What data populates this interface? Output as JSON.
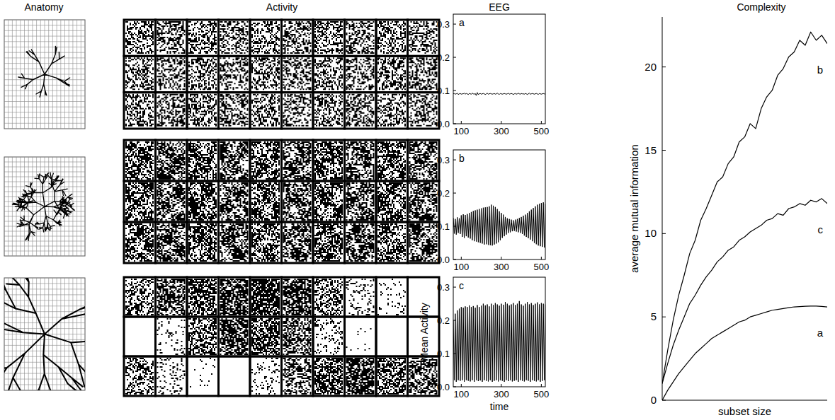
{
  "column_headers": [
    "Anatomy",
    "Activity",
    "EEG",
    "Complexity"
  ],
  "chart_data": [
    {
      "type": "line",
      "x": [
        60,
        65,
        70,
        75,
        80,
        85,
        90,
        95,
        100,
        105,
        110,
        115,
        120,
        125,
        130,
        135,
        140,
        145,
        150,
        155,
        160,
        165,
        170,
        175,
        180,
        185,
        190,
        195,
        200,
        205,
        210,
        215,
        220,
        225,
        230,
        235,
        240,
        245,
        250,
        255,
        260,
        265,
        270,
        275,
        280,
        285,
        290,
        295,
        300,
        305,
        310,
        315,
        320,
        325,
        330,
        335,
        340,
        345,
        350,
        355,
        360,
        365,
        370,
        375,
        380,
        385,
        390,
        395,
        400,
        405,
        410,
        415,
        420,
        425,
        430,
        435,
        440,
        445,
        450,
        455,
        460,
        465,
        470,
        475,
        480,
        485,
        490,
        495,
        500,
        505,
        510,
        515,
        520
      ],
      "series": [
        {
          "name": "a",
          "color": "#000000",
          "values": [
            0.09,
            0.091,
            0.089,
            0.09,
            0.092,
            0.088,
            0.09,
            0.091,
            0.089,
            0.09,
            0.09,
            0.092,
            0.089,
            0.091,
            0.09,
            0.088,
            0.091,
            0.09,
            0.089,
            0.092,
            0.09,
            0.089,
            0.091,
            0.085,
            0.094,
            0.088,
            0.09,
            0.091,
            0.089,
            0.09,
            0.091,
            0.09,
            0.088,
            0.09,
            0.092,
            0.089,
            0.09,
            0.091,
            0.09,
            0.089,
            0.09,
            0.091,
            0.089,
            0.09,
            0.092,
            0.09,
            0.088,
            0.091,
            0.09,
            0.089,
            0.09,
            0.091,
            0.09,
            0.089,
            0.09,
            0.092,
            0.089,
            0.09,
            0.091,
            0.09,
            0.088,
            0.09,
            0.091,
            0.089,
            0.09,
            0.092,
            0.09,
            0.089,
            0.091,
            0.09,
            0.09,
            0.089,
            0.091,
            0.09,
            0.088,
            0.09,
            0.092,
            0.089,
            0.09,
            0.091,
            0.09,
            0.089,
            0.09,
            0.091,
            0.09,
            0.088,
            0.091,
            0.09,
            0.089,
            0.09,
            0.091,
            0.09,
            0.089
          ]
        }
      ],
      "xlim": [
        60,
        520
      ],
      "ylim": [
        0,
        0.33
      ],
      "xticks": [
        100,
        300,
        500
      ],
      "yticks": [
        {
          "value": 0,
          "label": "0.0"
        },
        0.1,
        0.2,
        0.3
      ]
    },
    {
      "type": "line",
      "x": [
        60,
        65,
        70,
        75,
        80,
        85,
        90,
        95,
        100,
        105,
        110,
        115,
        120,
        125,
        130,
        135,
        140,
        145,
        150,
        155,
        160,
        165,
        170,
        175,
        180,
        185,
        190,
        195,
        200,
        205,
        210,
        215,
        220,
        225,
        230,
        235,
        240,
        245,
        250,
        255,
        260,
        265,
        270,
        275,
        280,
        285,
        290,
        295,
        300,
        305,
        310,
        315,
        320,
        325,
        330,
        335,
        340,
        345,
        350,
        355,
        360,
        365,
        370,
        375,
        380,
        385,
        390,
        395,
        400,
        405,
        410,
        415,
        420,
        425,
        430,
        435,
        440,
        445,
        450,
        455,
        460,
        465,
        470,
        475,
        480,
        485,
        490,
        495,
        500,
        505,
        510,
        515,
        520
      ],
      "series": [
        {
          "name": "b",
          "color": "#000000",
          "values": [
            0.125,
            0.078,
            0.122,
            0.075,
            0.127,
            0.08,
            0.124,
            0.077,
            0.133,
            0.068,
            0.136,
            0.065,
            0.134,
            0.07,
            0.137,
            0.066,
            0.14,
            0.063,
            0.143,
            0.058,
            0.146,
            0.055,
            0.148,
            0.054,
            0.15,
            0.052,
            0.152,
            0.05,
            0.154,
            0.048,
            0.156,
            0.045,
            0.157,
            0.046,
            0.158,
            0.044,
            0.16,
            0.043,
            0.165,
            0.042,
            0.162,
            0.045,
            0.158,
            0.048,
            0.152,
            0.052,
            0.145,
            0.058,
            0.14,
            0.065,
            0.135,
            0.07,
            0.128,
            0.075,
            0.124,
            0.08,
            0.122,
            0.082,
            0.12,
            0.085,
            0.118,
            0.086,
            0.12,
            0.084,
            0.122,
            0.082,
            0.125,
            0.08,
            0.128,
            0.077,
            0.132,
            0.072,
            0.135,
            0.068,
            0.14,
            0.064,
            0.145,
            0.06,
            0.15,
            0.055,
            0.155,
            0.05,
            0.16,
            0.046,
            0.165,
            0.042,
            0.168,
            0.04,
            0.17,
            0.038,
            0.172,
            0.036,
            0.168
          ]
        }
      ],
      "xlim": [
        60,
        520
      ],
      "ylim": [
        0,
        0.33
      ],
      "xticks": [
        100,
        300,
        500
      ],
      "yticks": [
        {
          "value": 0,
          "label": "0.0"
        },
        0.1,
        0.2,
        0.3
      ]
    },
    {
      "type": "line",
      "x": [
        60,
        65,
        70,
        75,
        80,
        85,
        90,
        95,
        100,
        105,
        110,
        115,
        120,
        125,
        130,
        135,
        140,
        145,
        150,
        155,
        160,
        165,
        170,
        175,
        180,
        185,
        190,
        195,
        200,
        205,
        210,
        215,
        220,
        225,
        230,
        235,
        240,
        245,
        250,
        255,
        260,
        265,
        270,
        275,
        280,
        285,
        290,
        295,
        300,
        305,
        310,
        315,
        320,
        325,
        330,
        335,
        340,
        345,
        350,
        355,
        360,
        365,
        370,
        375,
        380,
        385,
        390,
        395,
        400,
        405,
        410,
        415,
        420,
        425,
        430,
        435,
        440,
        445,
        450,
        455,
        460,
        465,
        470,
        475,
        480,
        485,
        490,
        495,
        500,
        505,
        510,
        515,
        520
      ],
      "series": [
        {
          "name": "c",
          "color": "#000000",
          "values": [
            0.2,
            0.02,
            0.22,
            0.015,
            0.23,
            0.02,
            0.235,
            0.018,
            0.24,
            0.02,
            0.238,
            0.015,
            0.242,
            0.02,
            0.24,
            0.018,
            0.245,
            0.016,
            0.24,
            0.02,
            0.243,
            0.015,
            0.238,
            0.02,
            0.246,
            0.017,
            0.24,
            0.019,
            0.244,
            0.015,
            0.25,
            0.02,
            0.245,
            0.018,
            0.248,
            0.016,
            0.242,
            0.02,
            0.25,
            0.015,
            0.246,
            0.018,
            0.252,
            0.02,
            0.248,
            0.016,
            0.244,
            0.02,
            0.25,
            0.018,
            0.247,
            0.015,
            0.255,
            0.02,
            0.25,
            0.017,
            0.245,
            0.02,
            0.248,
            0.016,
            0.252,
            0.018,
            0.246,
            0.02,
            0.25,
            0.015,
            0.258,
            0.02,
            0.248,
            0.018,
            0.244,
            0.016,
            0.25,
            0.02,
            0.255,
            0.018,
            0.248,
            0.015,
            0.252,
            0.02,
            0.246,
            0.018,
            0.25,
            0.016,
            0.254,
            0.02,
            0.248,
            0.015,
            0.252,
            0.018,
            0.25,
            0.02,
            0.248
          ]
        }
      ],
      "xlim": [
        60,
        520
      ],
      "ylim": [
        0,
        0.33
      ],
      "xticks": [
        100,
        300,
        500
      ],
      "yticks": [
        {
          "value": 0,
          "label": "0.0"
        },
        0.1,
        0.2,
        0.3
      ],
      "xlabel": "time",
      "ylabel": "Mean Activity"
    },
    {
      "type": "line",
      "x": [
        0,
        1,
        2,
        3,
        4,
        5,
        6,
        7,
        8,
        9,
        10,
        11,
        12,
        13,
        14,
        15,
        16,
        17,
        18,
        19,
        20,
        21,
        22,
        23,
        24,
        25,
        26,
        27,
        28,
        29,
        30
      ],
      "series": [
        {
          "name": "b",
          "color": "#000000",
          "values": [
            1,
            3,
            4.8,
            6.3,
            7.5,
            8.8,
            9.6,
            10.8,
            11.5,
            12.3,
            13.1,
            13.4,
            14.2,
            14.6,
            15.5,
            15.8,
            16.6,
            16.3,
            17.5,
            18.2,
            18.6,
            19.5,
            19.9,
            20.6,
            20.9,
            21.6,
            21.3,
            22.1,
            21.6,
            21.9,
            21.4
          ]
        },
        {
          "name": "c",
          "color": "#000000",
          "values": [
            1,
            2.2,
            3.3,
            4.2,
            5,
            5.8,
            6.3,
            6.9,
            7.4,
            7.8,
            8.3,
            8.6,
            9,
            9.2,
            9.6,
            9.8,
            10.1,
            10.3,
            10.5,
            10.8,
            10.9,
            11.2,
            11.1,
            11.5,
            11.6,
            11.8,
            11.7,
            12,
            11.9,
            12.1,
            11.8
          ]
        },
        {
          "name": "a",
          "color": "#000000",
          "values": [
            0,
            0.6,
            1.1,
            1.6,
            2,
            2.4,
            2.8,
            3.1,
            3.4,
            3.7,
            3.9,
            4.1,
            4.3,
            4.5,
            4.7,
            4.8,
            5,
            5.1,
            5.2,
            5.3,
            5.4,
            5.45,
            5.5,
            5.55,
            5.6,
            5.62,
            5.64,
            5.65,
            5.65,
            5.63,
            5.6
          ]
        }
      ],
      "xlim": [
        0,
        30
      ],
      "ylim": [
        0,
        23
      ],
      "xticks": [],
      "yticks": [
        0,
        5,
        10,
        15,
        20
      ],
      "tick_labels": "y",
      "xlabel": "subset size",
      "ylabel": "average mutual information"
    }
  ]
}
